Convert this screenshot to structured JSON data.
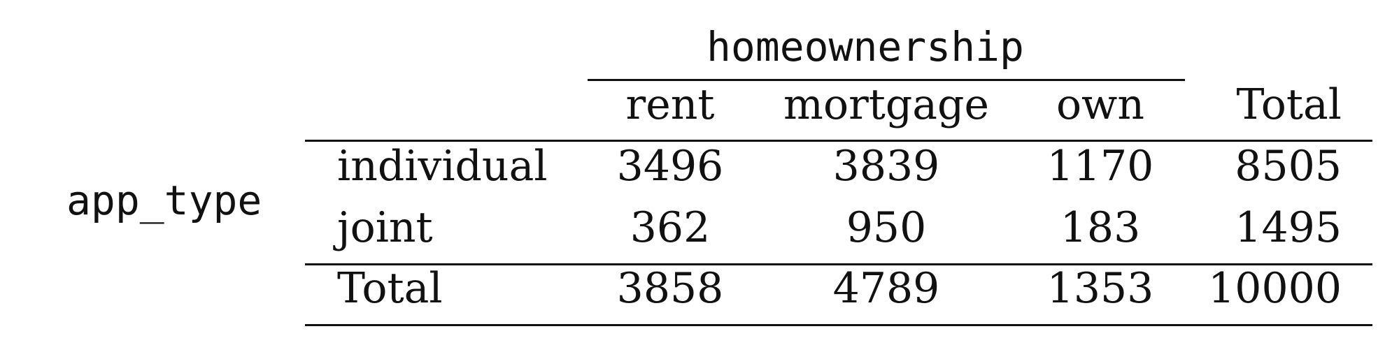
{
  "table": {
    "column_variable": "homeownership",
    "row_variable": "app_type",
    "columns": [
      "rent",
      "mortgage",
      "own",
      "Total"
    ],
    "rows": [
      {
        "label": "individual",
        "values": [
          "3496",
          "3839",
          "1170",
          "8505"
        ]
      },
      {
        "label": "joint",
        "values": [
          "362",
          "950",
          "183",
          "1495"
        ]
      }
    ],
    "total_row": {
      "label": "Total",
      "values": [
        "3858",
        "4789",
        "1353",
        "10000"
      ]
    }
  }
}
